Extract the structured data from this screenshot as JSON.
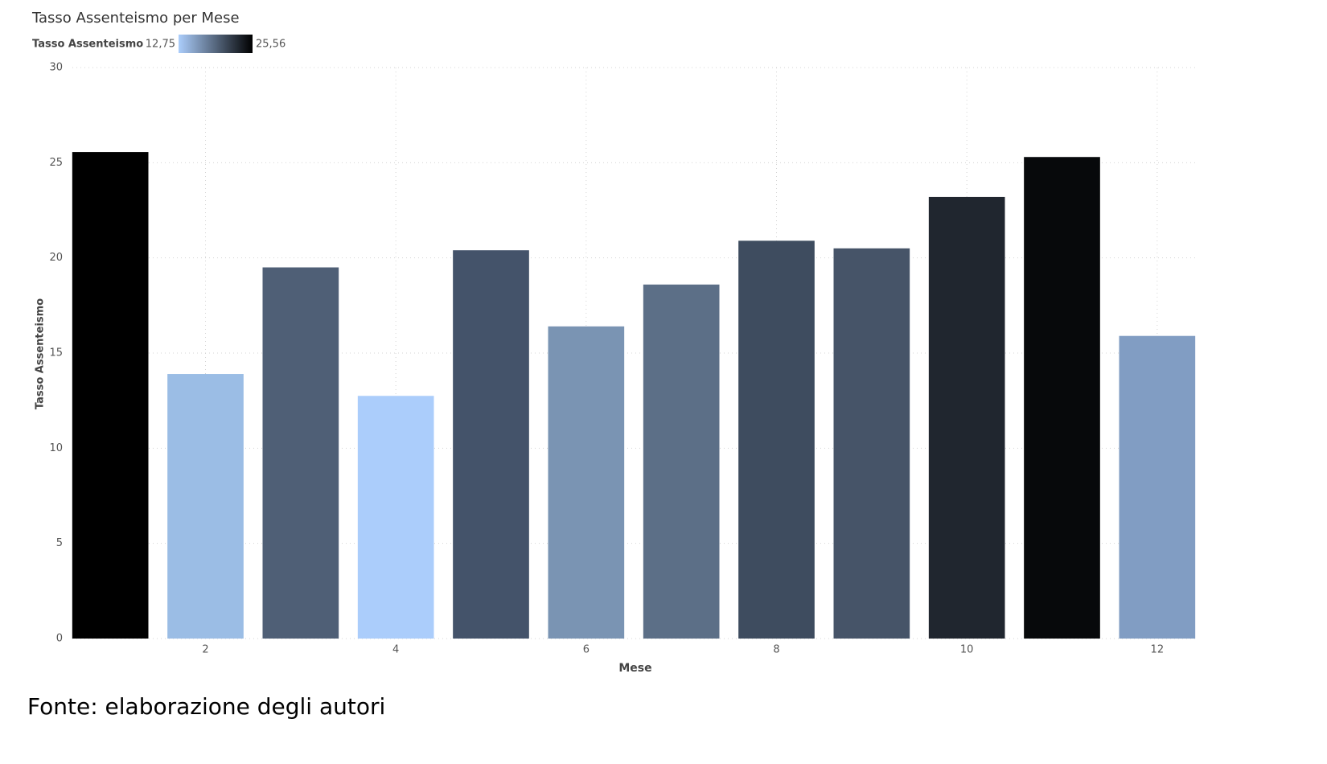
{
  "chart_data": {
    "type": "bar",
    "title": "Tasso Assenteismo per Mese",
    "legend": {
      "title": "Tasso Assenteismo",
      "min": {
        "value": 12.75,
        "label": "12,75"
      },
      "max": {
        "value": 25.56,
        "label": "25,56"
      },
      "colors": [
        "#abcdfb",
        "#000000"
      ]
    },
    "x_label": "Mese",
    "y_label": "Tasso Assenteismo",
    "x": [
      1,
      2,
      3,
      4,
      5,
      6,
      7,
      8,
      9,
      10,
      11,
      12
    ],
    "values": [
      25.56,
      13.9,
      19.5,
      12.75,
      20.4,
      16.4,
      18.6,
      20.9,
      20.5,
      23.2,
      25.3,
      15.9
    ],
    "colors": [
      "#000000",
      "#9bbde5",
      "#4f5f76",
      "#abcdfb",
      "#44536a",
      "#7a94b3",
      "#5c6f87",
      "#3e4c5f",
      "#465468",
      "#20262f",
      "#07090b",
      "#819dc3"
    ],
    "xlim": [
      0.5,
      12.5
    ],
    "xticks": [
      2,
      4,
      6,
      8,
      10,
      12
    ],
    "ylim": [
      0,
      30
    ],
    "yticks": [
      0,
      5,
      10,
      15,
      20,
      25,
      30
    ],
    "grid": true,
    "source": "Fonte: elaborazione degli autori"
  }
}
